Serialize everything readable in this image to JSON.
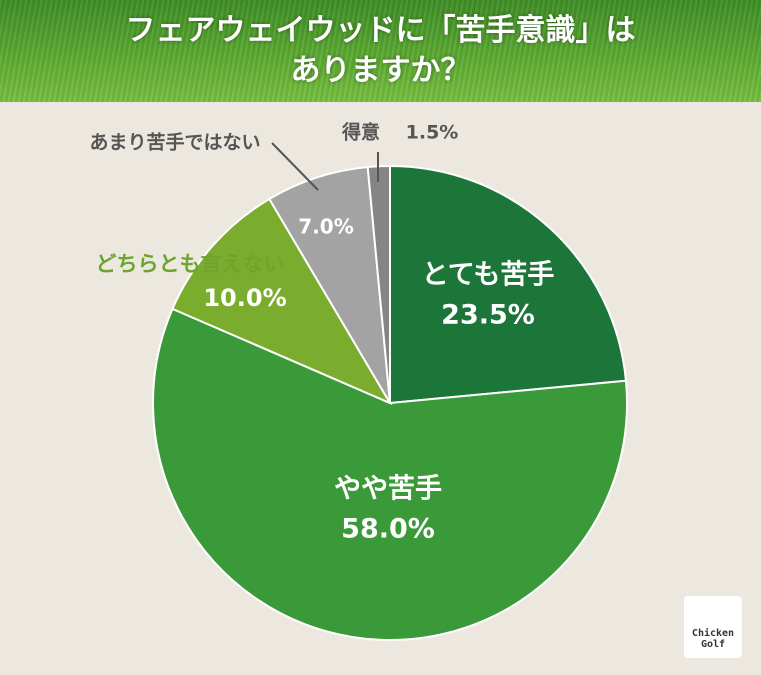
{
  "chart_data": {
    "type": "pie",
    "title": "フェアウェイウッドに「苦手意識」はありますか？",
    "categories": [
      "とても苦手",
      "やや苦手",
      "どちらとも言えない",
      "あまり苦手ではない",
      "得意"
    ],
    "values": [
      23.5,
      58.0,
      10.0,
      7.0,
      1.5
    ],
    "value_labels": [
      "23.5%",
      "58.0%",
      "10.0%",
      "7.0%",
      "1.5%"
    ],
    "colors": [
      "#1c763a",
      "#3a9a3a",
      "#7aad2e",
      "#a3a3a3",
      "#858585"
    ]
  },
  "logo": [
    "Chicken",
    "Golf"
  ]
}
